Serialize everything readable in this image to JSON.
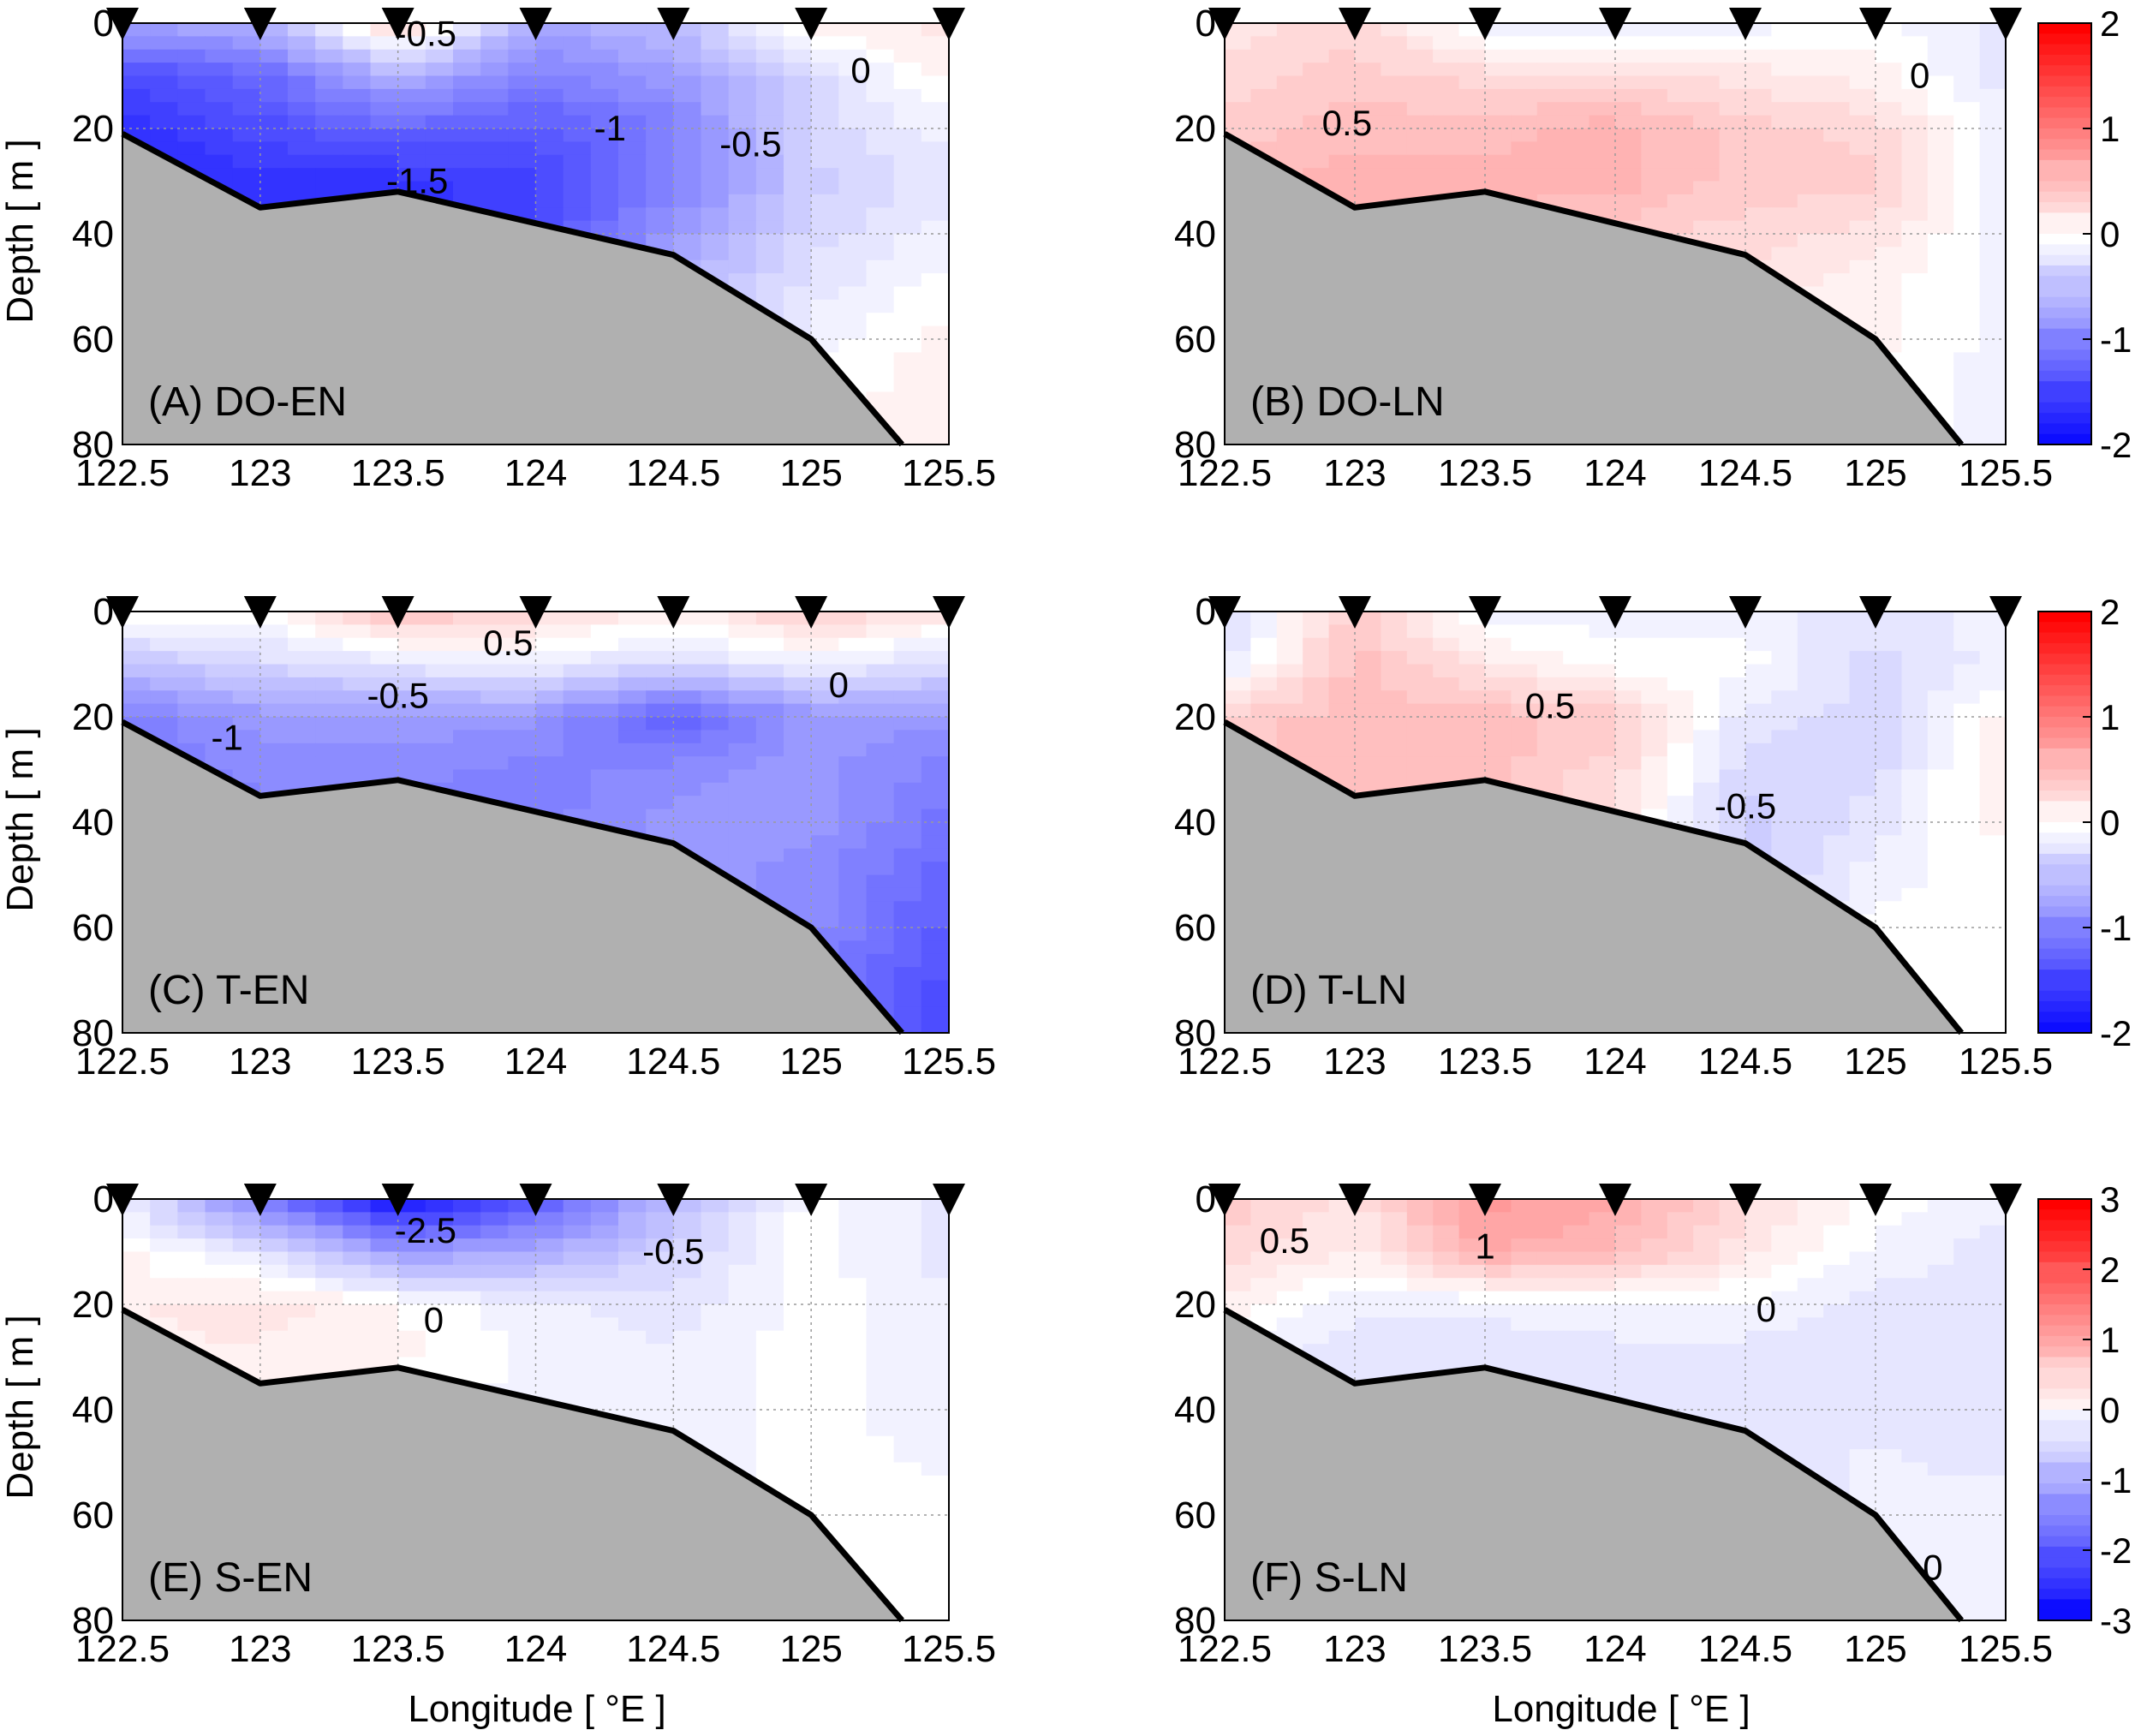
{
  "figure": {
    "xlabel": "Longitude [ °E ]",
    "ylabel": "Depth [ m ]"
  },
  "colors": {
    "land": "#b0b0b0",
    "positive_max": "#ff0000",
    "negative_max": "#0000ff",
    "neutral": "#ffffff"
  },
  "chart_data": [
    {
      "type": "heatmap",
      "panel_label": "(A) DO-EN",
      "x_ticks": [
        "122.5",
        "123",
        "123.5",
        "124",
        "124.5",
        "125",
        "125.5"
      ],
      "y_ticks": [
        "0",
        "20",
        "40",
        "60",
        "80"
      ],
      "xlim": [
        122.5,
        125.5
      ],
      "ylim": [
        0,
        80
      ],
      "stations": [
        122.5,
        123,
        123.5,
        124,
        124.5,
        125,
        125.5
      ],
      "bathymetry": [
        [
          122.5,
          21
        ],
        [
          123,
          35
        ],
        [
          123.5,
          32
        ],
        [
          124,
          38
        ],
        [
          124.5,
          44
        ],
        [
          125,
          60
        ],
        [
          125.33,
          80
        ]
      ],
      "grid_x": [
        122.5,
        123,
        123.5,
        124,
        124.5,
        125,
        125.5
      ],
      "grid_y": [
        0,
        10,
        20,
        30,
        40,
        50,
        60,
        70,
        80
      ],
      "values": [
        [
          -0.7,
          -0.6,
          0.4,
          -0.7,
          -0.5,
          0.1,
          0.2
        ],
        [
          -1.4,
          -1.2,
          -0.6,
          -1.0,
          -0.8,
          -0.3,
          0.1
        ],
        [
          -1.6,
          -1.4,
          -1.2,
          -1.3,
          -1.0,
          -0.3,
          -0.1
        ],
        [
          -1.7,
          -1.6,
          -1.6,
          -1.5,
          -1.0,
          -0.4,
          -0.2
        ],
        [
          -1.7,
          -1.6,
          -1.6,
          -1.4,
          -0.8,
          -0.3,
          -0.1
        ],
        [
          -1.6,
          -1.5,
          -1.5,
          -1.2,
          -0.6,
          -0.2,
          0.0
        ],
        [
          -1.5,
          -1.4,
          -1.3,
          -1.0,
          -0.5,
          -0.1,
          0.1
        ],
        [
          -1.4,
          -1.3,
          -1.2,
          -0.9,
          -0.4,
          0.0,
          0.1
        ],
        [
          -1.3,
          -1.2,
          -1.1,
          -0.8,
          -0.3,
          0.0,
          0.1
        ]
      ],
      "contour_labels": [
        {
          "text": "-0.5",
          "x": 123.6,
          "y": 2
        },
        {
          "text": "-1",
          "x": 124.27,
          "y": 20
        },
        {
          "text": "-0.5",
          "x": 124.78,
          "y": 23
        },
        {
          "text": "-1.5",
          "x": 123.57,
          "y": 30
        },
        {
          "text": "0",
          "x": 125.18,
          "y": 9
        }
      ],
      "colorbar_index": null
    },
    {
      "type": "heatmap",
      "panel_label": "(B) DO-LN",
      "x_ticks": [
        "122.5",
        "123",
        "123.5",
        "124",
        "124.5",
        "125",
        "125.5"
      ],
      "y_ticks": [
        "0",
        "20",
        "40",
        "60",
        "80"
      ],
      "xlim": [
        122.5,
        125.5
      ],
      "ylim": [
        0,
        80
      ],
      "stations": [
        122.5,
        123,
        123.5,
        124,
        124.5,
        125,
        125.5
      ],
      "bathymetry": [
        [
          122.5,
          21
        ],
        [
          123,
          35
        ],
        [
          123.5,
          32
        ],
        [
          124,
          38
        ],
        [
          124.5,
          44
        ],
        [
          125,
          60
        ],
        [
          125.33,
          80
        ]
      ],
      "grid_x": [
        122.5,
        123,
        123.5,
        124,
        124.5,
        125,
        125.5
      ],
      "grid_y": [
        0,
        10,
        20,
        30,
        40,
        50,
        60,
        70,
        80
      ],
      "values": [
        [
          0.2,
          0.3,
          -0.1,
          -0.2,
          -0.1,
          0.0,
          -0.2
        ],
        [
          0.3,
          0.4,
          0.3,
          0.3,
          0.2,
          0.1,
          -0.2
        ],
        [
          0.4,
          0.5,
          0.5,
          0.6,
          0.4,
          0.3,
          -0.1
        ],
        [
          0.5,
          0.6,
          0.6,
          0.6,
          0.4,
          0.4,
          -0.1
        ],
        [
          0.5,
          0.5,
          0.5,
          0.4,
          0.3,
          0.2,
          -0.1
        ],
        [
          0.4,
          0.4,
          0.4,
          0.3,
          0.2,
          0.1,
          -0.1
        ],
        [
          0.3,
          0.3,
          0.3,
          0.2,
          0.1,
          0.1,
          -0.1
        ],
        [
          0.3,
          0.3,
          0.3,
          0.2,
          0.1,
          0.0,
          -0.1
        ],
        [
          0.2,
          0.2,
          0.2,
          0.2,
          0.1,
          0.0,
          -0.1
        ]
      ],
      "contour_labels": [
        {
          "text": "0.5",
          "x": 122.97,
          "y": 19
        },
        {
          "text": "0",
          "x": 125.17,
          "y": 10
        }
      ],
      "colorbar_index": 0
    },
    {
      "type": "heatmap",
      "panel_label": "(C) T-EN",
      "x_ticks": [
        "122.5",
        "123",
        "123.5",
        "124",
        "124.5",
        "125",
        "125.5"
      ],
      "y_ticks": [
        "0",
        "20",
        "40",
        "60",
        "80"
      ],
      "xlim": [
        122.5,
        125.5
      ],
      "ylim": [
        0,
        80
      ],
      "stations": [
        122.5,
        123,
        123.5,
        124,
        124.5,
        125,
        125.5
      ],
      "bathymetry": [
        [
          122.5,
          21
        ],
        [
          123,
          35
        ],
        [
          123.5,
          32
        ],
        [
          124,
          38
        ],
        [
          124.5,
          44
        ],
        [
          125,
          60
        ],
        [
          125.33,
          80
        ]
      ],
      "grid_x": [
        122.5,
        123,
        123.5,
        124,
        124.5,
        125,
        125.5
      ],
      "grid_y": [
        0,
        10,
        20,
        30,
        40,
        50,
        60,
        70,
        80
      ],
      "values": [
        [
          0.1,
          0.0,
          0.5,
          0.3,
          0.1,
          0.4,
          0.2
        ],
        [
          -0.5,
          -0.3,
          -0.2,
          -0.1,
          -0.3,
          -0.1,
          -0.3
        ],
        [
          -1.0,
          -0.8,
          -0.8,
          -0.8,
          -1.3,
          -0.8,
          -0.8
        ],
        [
          -1.1,
          -0.9,
          -0.9,
          -1.0,
          -0.9,
          -0.8,
          -1.0
        ],
        [
          -1.1,
          -1.0,
          -1.0,
          -1.0,
          -0.8,
          -0.8,
          -1.1
        ],
        [
          -1.1,
          -1.0,
          -1.0,
          -0.9,
          -0.8,
          -0.9,
          -1.2
        ],
        [
          -1.1,
          -1.0,
          -1.0,
          -0.9,
          -0.8,
          -0.9,
          -1.3
        ],
        [
          -1.1,
          -1.0,
          -1.0,
          -0.9,
          -0.8,
          -1.0,
          -1.4
        ],
        [
          -1.1,
          -1.0,
          -1.0,
          -0.9,
          -0.8,
          -1.0,
          -1.5
        ]
      ],
      "contour_labels": [
        {
          "text": "0.5",
          "x": 123.9,
          "y": 6
        },
        {
          "text": "-0.5",
          "x": 123.5,
          "y": 16
        },
        {
          "text": "0",
          "x": 125.1,
          "y": 14
        },
        {
          "text": "-1",
          "x": 122.88,
          "y": 24
        }
      ],
      "colorbar_index": null
    },
    {
      "type": "heatmap",
      "panel_label": "(D) T-LN",
      "x_ticks": [
        "122.5",
        "123",
        "123.5",
        "124",
        "124.5",
        "125",
        "125.5"
      ],
      "y_ticks": [
        "0",
        "20",
        "40",
        "60",
        "80"
      ],
      "xlim": [
        122.5,
        125.5
      ],
      "ylim": [
        0,
        80
      ],
      "stations": [
        122.5,
        123,
        123.5,
        124,
        124.5,
        125,
        125.5
      ],
      "bathymetry": [
        [
          122.5,
          21
        ],
        [
          123,
          35
        ],
        [
          123.5,
          32
        ],
        [
          124,
          38
        ],
        [
          124.5,
          44
        ],
        [
          125,
          60
        ],
        [
          125.33,
          80
        ]
      ],
      "grid_x": [
        122.5,
        123,
        123.5,
        124,
        124.5,
        125,
        125.5
      ],
      "grid_y": [
        0,
        10,
        20,
        30,
        40,
        50,
        60,
        70,
        80
      ],
      "values": [
        [
          -0.3,
          0.4,
          -0.1,
          -0.1,
          -0.1,
          -0.2,
          -0.1
        ],
        [
          -0.2,
          0.5,
          0.2,
          0.0,
          0.0,
          -0.3,
          -0.1
        ],
        [
          0.4,
          0.5,
          0.5,
          0.4,
          -0.2,
          -0.3,
          0.1
        ],
        [
          0.4,
          0.5,
          0.5,
          0.3,
          -0.3,
          -0.3,
          0.2
        ],
        [
          0.3,
          0.4,
          0.4,
          0.2,
          -0.4,
          -0.2,
          0.1
        ],
        [
          0.3,
          0.3,
          0.3,
          0.1,
          -0.4,
          -0.1,
          0.0
        ],
        [
          0.2,
          0.2,
          0.2,
          0.1,
          -0.3,
          0.0,
          0.0
        ],
        [
          0.2,
          0.2,
          0.2,
          0.1,
          -0.2,
          0.0,
          0.0
        ],
        [
          0.2,
          0.2,
          0.2,
          0.1,
          -0.2,
          0.0,
          0.0
        ]
      ],
      "contour_labels": [
        {
          "text": "0.5",
          "x": 123.75,
          "y": 18
        },
        {
          "text": "-0.5",
          "x": 124.5,
          "y": 37
        }
      ],
      "colorbar_index": 1
    },
    {
      "type": "heatmap",
      "panel_label": "(E) S-EN",
      "x_ticks": [
        "122.5",
        "123",
        "123.5",
        "124",
        "124.5",
        "125",
        "125.5"
      ],
      "y_ticks": [
        "0",
        "20",
        "40",
        "60",
        "80"
      ],
      "xlim": [
        122.5,
        125.5
      ],
      "ylim": [
        0,
        80
      ],
      "stations": [
        122.5,
        123,
        123.5,
        124,
        124.5,
        125,
        125.5
      ],
      "bathymetry": [
        [
          122.5,
          21
        ],
        [
          123,
          35
        ],
        [
          123.5,
          32
        ],
        [
          124,
          38
        ],
        [
          124.5,
          44
        ],
        [
          125,
          60
        ],
        [
          125.33,
          80
        ]
      ],
      "grid_x": [
        122.5,
        123,
        123.5,
        124,
        124.5,
        125,
        125.5
      ],
      "grid_y": [
        0,
        10,
        20,
        30,
        40,
        50,
        60,
        70,
        80
      ],
      "values": [
        [
          -0.2,
          -1.5,
          -2.8,
          -2.0,
          -0.8,
          0.0,
          -0.3
        ],
        [
          0.1,
          -0.3,
          -1.2,
          -1.0,
          -0.5,
          0.0,
          -0.3
        ],
        [
          0.2,
          0.3,
          0.1,
          -0.2,
          -0.3,
          0.0,
          -0.2
        ],
        [
          0.2,
          0.2,
          0.1,
          -0.1,
          -0.2,
          0.0,
          -0.2
        ],
        [
          0.1,
          0.1,
          -0.1,
          -0.1,
          -0.2,
          0.0,
          -0.2
        ],
        [
          0.1,
          0.0,
          -0.1,
          -0.1,
          -0.2,
          0.0,
          -0.1
        ],
        [
          0.0,
          0.0,
          -0.1,
          -0.1,
          -0.1,
          0.0,
          0.0
        ],
        [
          0.0,
          0.0,
          -0.1,
          -0.1,
          -0.1,
          0.0,
          0.0
        ],
        [
          0.0,
          0.0,
          -0.1,
          -0.1,
          -0.1,
          0.0,
          0.0
        ]
      ],
      "contour_labels": [
        {
          "text": "-2.5",
          "x": 123.6,
          "y": 6
        },
        {
          "text": "-0.5",
          "x": 124.5,
          "y": 10
        },
        {
          "text": "0",
          "x": 123.63,
          "y": 23
        }
      ],
      "colorbar_index": null
    },
    {
      "type": "heatmap",
      "panel_label": "(F) S-LN",
      "x_ticks": [
        "122.5",
        "123",
        "123.5",
        "124",
        "124.5",
        "125",
        "125.5"
      ],
      "y_ticks": [
        "0",
        "20",
        "40",
        "60",
        "80"
      ],
      "xlim": [
        122.5,
        125.5
      ],
      "ylim": [
        0,
        80
      ],
      "stations": [
        122.5,
        123,
        123.5,
        124,
        124.5,
        125,
        125.5
      ],
      "bathymetry": [
        [
          122.5,
          21
        ],
        [
          123,
          35
        ],
        [
          123.5,
          32
        ],
        [
          124,
          38
        ],
        [
          124.5,
          44
        ],
        [
          125,
          60
        ],
        [
          125.33,
          80
        ]
      ],
      "grid_x": [
        122.5,
        123,
        123.5,
        124,
        124.5,
        125,
        125.5
      ],
      "grid_y": [
        0,
        10,
        20,
        30,
        40,
        50,
        60,
        70,
        80
      ],
      "values": [
        [
          0.6,
          0.3,
          1.2,
          1.0,
          0.4,
          0.0,
          -0.2
        ],
        [
          0.5,
          0.2,
          1.0,
          0.8,
          0.3,
          -0.1,
          -0.3
        ],
        [
          0.2,
          -0.2,
          -0.2,
          -0.1,
          -0.1,
          -0.3,
          -0.3
        ],
        [
          -0.2,
          -0.3,
          -0.3,
          -0.3,
          -0.3,
          -0.3,
          -0.3
        ],
        [
          -0.3,
          -0.3,
          -0.3,
          -0.3,
          -0.3,
          -0.3,
          -0.3
        ],
        [
          -0.3,
          -0.3,
          -0.3,
          -0.3,
          -0.3,
          -0.2,
          -0.3
        ],
        [
          -0.3,
          -0.3,
          -0.3,
          -0.3,
          -0.3,
          -0.2,
          -0.1
        ],
        [
          -0.3,
          -0.3,
          -0.3,
          -0.3,
          -0.2,
          -0.1,
          -0.1
        ],
        [
          -0.3,
          -0.3,
          -0.3,
          -0.3,
          -0.2,
          -0.1,
          -0.1
        ]
      ],
      "contour_labels": [
        {
          "text": "0.5",
          "x": 122.73,
          "y": 8
        },
        {
          "text": "1",
          "x": 123.5,
          "y": 9
        },
        {
          "text": "0",
          "x": 124.58,
          "y": 21
        },
        {
          "text": "0",
          "x": 125.22,
          "y": 70
        }
      ],
      "colorbar_index": 2
    }
  ],
  "colorbars": [
    {
      "min": -2,
      "max": 2,
      "tick_labels": [
        "2",
        "1",
        "0",
        "-1",
        "-2"
      ],
      "tick_values": [
        2,
        1,
        0,
        -1,
        -2
      ]
    },
    {
      "min": -2,
      "max": 2,
      "tick_labels": [
        "2",
        "1",
        "0",
        "-1",
        "-2"
      ],
      "tick_values": [
        2,
        1,
        0,
        -1,
        -2
      ]
    },
    {
      "min": -3,
      "max": 3,
      "tick_labels": [
        "3",
        "2",
        "1",
        "0",
        "-1",
        "-2",
        "-3"
      ],
      "tick_values": [
        3,
        2,
        1,
        0,
        -1,
        -2,
        -3
      ]
    }
  ]
}
